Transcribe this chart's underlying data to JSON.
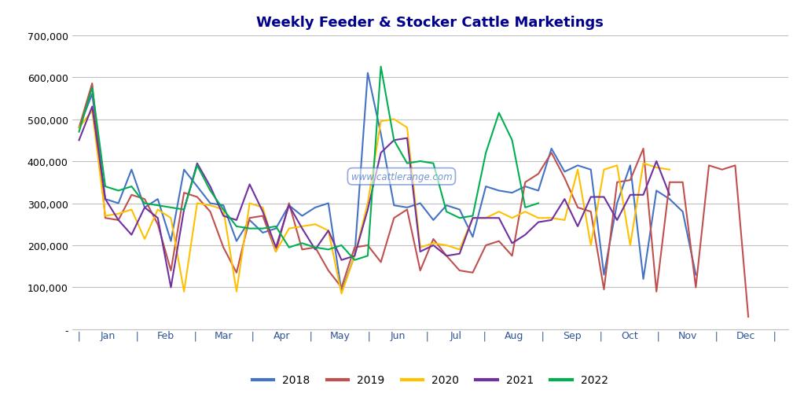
{
  "title": "Weekly Feeder & Stocker Cattle Marketings",
  "title_color": "#00008B",
  "background_color": "#FFFFFF",
  "plot_bg_color": "#FFFFFF",
  "years": [
    "2018",
    "2019",
    "2020",
    "2021",
    "2022"
  ],
  "colors": {
    "2018": "#4472C4",
    "2019": "#C0504D",
    "2020": "#FFC000",
    "2021": "#7030A0",
    "2022": "#00B050"
  },
  "months": [
    "Jan",
    "Feb",
    "Mar",
    "Apr",
    "May",
    "Jun",
    "Jul",
    "Aug",
    "Sep",
    "Oct",
    "Nov",
    "Dec"
  ],
  "data": {
    "2018": [
      480000,
      560000,
      310000,
      300000,
      380000,
      290000,
      310000,
      210000,
      380000,
      340000,
      300000,
      295000,
      210000,
      260000,
      230000,
      240000,
      295000,
      270000,
      290000,
      300000,
      90000,
      175000,
      610000,
      465000,
      295000,
      290000,
      300000,
      260000,
      295000,
      285000,
      220000,
      340000,
      330000,
      325000,
      340000,
      330000,
      430000,
      375000,
      390000,
      380000,
      130000,
      300000,
      390000,
      120000,
      330000,
      310000,
      280000,
      130000,
      null,
      null,
      null,
      null,
      null,
      null
    ],
    "2019": [
      480000,
      585000,
      265000,
      260000,
      320000,
      310000,
      250000,
      140000,
      325000,
      315000,
      280000,
      195000,
      135000,
      265000,
      270000,
      185000,
      300000,
      190000,
      195000,
      140000,
      100000,
      195000,
      200000,
      160000,
      265000,
      285000,
      140000,
      215000,
      175000,
      140000,
      135000,
      200000,
      210000,
      175000,
      350000,
      370000,
      420000,
      360000,
      290000,
      280000,
      95000,
      350000,
      355000,
      430000,
      90000,
      350000,
      350000,
      100000,
      390000,
      380000,
      390000,
      30000,
      null,
      null
    ],
    "2020": [
      480000,
      520000,
      270000,
      275000,
      285000,
      215000,
      285000,
      265000,
      90000,
      300000,
      295000,
      285000,
      90000,
      300000,
      290000,
      185000,
      240000,
      245000,
      250000,
      235000,
      85000,
      175000,
      300000,
      495000,
      500000,
      480000,
      195000,
      205000,
      200000,
      190000,
      265000,
      265000,
      280000,
      265000,
      280000,
      265000,
      265000,
      260000,
      380000,
      200000,
      380000,
      390000,
      200000,
      395000,
      385000,
      380000,
      null,
      null,
      null,
      null,
      null,
      null,
      null,
      null
    ],
    "2021": [
      450000,
      530000,
      310000,
      260000,
      225000,
      290000,
      265000,
      100000,
      285000,
      395000,
      340000,
      270000,
      260000,
      345000,
      280000,
      195000,
      295000,
      240000,
      190000,
      235000,
      165000,
      175000,
      285000,
      420000,
      450000,
      455000,
      185000,
      200000,
      175000,
      180000,
      265000,
      265000,
      265000,
      205000,
      225000,
      255000,
      260000,
      310000,
      245000,
      315000,
      315000,
      260000,
      320000,
      320000,
      400000,
      320000,
      null,
      null,
      null,
      null,
      null,
      null,
      null,
      null
    ],
    "2022": [
      470000,
      575000,
      340000,
      330000,
      340000,
      300000,
      295000,
      290000,
      285000,
      390000,
      330000,
      285000,
      245000,
      240000,
      240000,
      245000,
      195000,
      205000,
      195000,
      190000,
      200000,
      165000,
      175000,
      625000,
      450000,
      395000,
      400000,
      395000,
      280000,
      265000,
      270000,
      420000,
      515000,
      450000,
      290000,
      300000,
      null,
      null,
      null,
      null,
      null,
      null,
      null,
      null,
      null,
      null,
      null,
      null,
      null,
      null,
      null,
      null,
      null,
      null
    ]
  },
  "ylim": [
    0,
    700000
  ],
  "yticks": [
    0,
    100000,
    200000,
    300000,
    400000,
    500000,
    600000,
    700000
  ],
  "grid_color": "#BFBFBF",
  "tick_color": "#2F5496",
  "watermark": "www.cattlerange.com",
  "weeks_total": 53,
  "month_starts": [
    0,
    4.33,
    8.67,
    13.0,
    17.33,
    21.67,
    26.0,
    30.33,
    34.67,
    39.0,
    43.33,
    47.67,
    52.0
  ]
}
